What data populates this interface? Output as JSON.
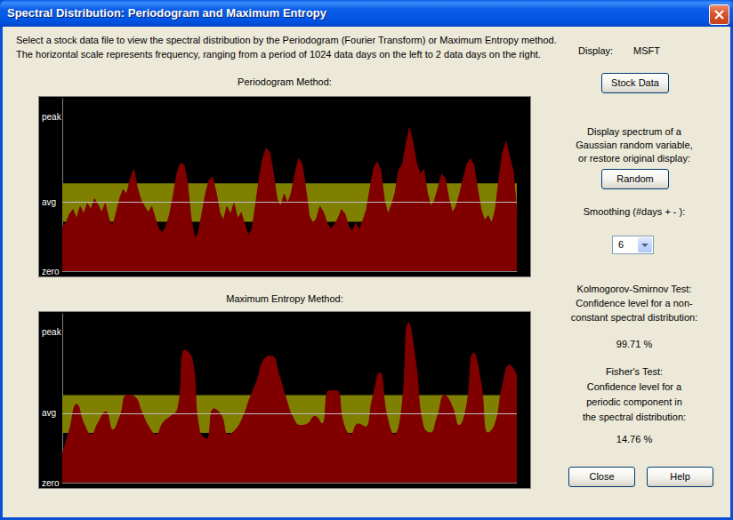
{
  "window": {
    "title": "Spectral Distribution: Periodogram and Maximum Entropy"
  },
  "instructions": [
    "Select a stock data file to view the spectral distribution by the Periodogram (Fourier Transform) or Maximum Entropy method.",
    "The horizontal scale represents frequency, ranging from a period of 1024 data days on the left to 2 data days on the right."
  ],
  "panel": {
    "display_label": "Display:",
    "display_value": "MSFT",
    "stock_button": "Stock Data",
    "random_text": [
      "Display spectrum of a",
      "Gaussian random variable,",
      "or restore original display:"
    ],
    "random_button": "Random",
    "smoothing_label": "Smoothing (#days + - ):",
    "smoothing_value": "6",
    "ks_text": [
      "Kolmogorov-Smirnov Test:",
      "Confidence level for a non-",
      "constant spectral distribution:"
    ],
    "ks_value": "99.71 %",
    "fisher_text": [
      "Fisher's Test:",
      "Confidence level for a",
      "periodic component in",
      "the spectral distribution:"
    ],
    "fisher_value": "14.76 %",
    "close_button": "Close",
    "help_button": "Help"
  },
  "chart_data": [
    {
      "type": "area",
      "title": "Periodogram Method:",
      "color": "#800000",
      "marker": "none",
      "line_style": "solid",
      "grid": false,
      "tick_labels": "y",
      "x": [
        1,
        2,
        3,
        4,
        5,
        6,
        7,
        8,
        9,
        10,
        11,
        12,
        13,
        14,
        15,
        16,
        17,
        18,
        19,
        20,
        21,
        22,
        23,
        24,
        25,
        26,
        27,
        28,
        29,
        30,
        31,
        32,
        33,
        34,
        35,
        36,
        37,
        38,
        39,
        40,
        41,
        42,
        43,
        44,
        45,
        46,
        47,
        48,
        49,
        50,
        51,
        52,
        53,
        54,
        55,
        56,
        57,
        58,
        59,
        60,
        61,
        62,
        63,
        64,
        65,
        66,
        67,
        68,
        69,
        70,
        71,
        72,
        73,
        74,
        75,
        76,
        77,
        78,
        79,
        80,
        81,
        82,
        83,
        84,
        85,
        86,
        87,
        88,
        89,
        90,
        91,
        92,
        93,
        94,
        95,
        96,
        97,
        98,
        99,
        100,
        101,
        102,
        103,
        104,
        105,
        106,
        107,
        108,
        109,
        110,
        111,
        112,
        113,
        114,
        115,
        116,
        117,
        118,
        119,
        120,
        121,
        122,
        123,
        124,
        125,
        126,
        127,
        128
      ],
      "values": [
        29,
        31,
        37,
        40,
        34,
        42,
        37,
        44,
        40,
        47,
        43,
        38,
        44,
        34,
        29,
        37,
        47,
        53,
        50,
        60,
        66,
        54,
        46,
        42,
        38,
        42,
        34,
        27,
        25,
        29,
        37,
        49,
        63,
        70,
        69,
        57,
        34,
        21,
        25,
        37,
        50,
        59,
        61,
        51,
        38,
        33,
        42,
        37,
        44,
        34,
        38,
        30,
        23,
        27,
        43,
        60,
        73,
        80,
        77,
        63,
        47,
        42,
        50,
        44,
        51,
        63,
        73,
        70,
        54,
        36,
        31,
        34,
        42,
        38,
        31,
        27,
        30,
        34,
        40,
        37,
        29,
        26,
        31,
        27,
        33,
        40,
        54,
        67,
        71,
        65,
        46,
        37,
        43,
        51,
        66,
        69,
        82,
        93,
        83,
        70,
        63,
        66,
        51,
        42,
        46,
        54,
        63,
        60,
        47,
        38,
        42,
        50,
        60,
        69,
        73,
        69,
        54,
        40,
        33,
        36,
        31,
        40,
        60,
        77,
        84,
        74,
        65,
        37
      ],
      "xlim": [
        1,
        128
      ],
      "ylim": [
        0,
        112
      ],
      "yticks": [
        {
          "value": 0,
          "label": "zero"
        },
        {
          "value": 45,
          "label": "avg"
        },
        {
          "value": 100,
          "label": "peak"
        }
      ],
      "band": [
        32,
        57
      ],
      "reference_line": 45
    },
    {
      "type": "area",
      "title": "Maximum Entropy Method:",
      "color": "#800000",
      "marker": "none",
      "line_style": "smooth",
      "grid": false,
      "tick_labels": "y",
      "x": [
        1,
        2,
        3,
        4,
        5,
        6,
        7,
        8,
        9,
        10,
        11,
        12,
        13,
        14,
        15,
        16,
        17,
        18,
        19,
        20,
        21,
        22,
        23,
        24,
        25,
        26,
        27,
        28,
        29,
        30,
        31,
        32,
        33,
        34,
        35,
        36,
        37,
        38,
        39,
        40,
        41,
        42,
        43,
        44,
        45,
        46,
        47,
        48,
        49,
        50,
        51,
        52,
        53,
        54,
        55,
        56,
        57,
        58,
        59,
        60,
        61,
        62,
        63,
        64
      ],
      "values": [
        19,
        35,
        52,
        39,
        32,
        40,
        47,
        35,
        44,
        58,
        57,
        47,
        37,
        32,
        40,
        44,
        49,
        88,
        82,
        35,
        29,
        49,
        45,
        32,
        35,
        43,
        56,
        68,
        82,
        84,
        72,
        56,
        43,
        38,
        39,
        44,
        39,
        61,
        61,
        39,
        32,
        39,
        37,
        56,
        73,
        44,
        32,
        47,
        106,
        79,
        38,
        33,
        44,
        58,
        51,
        38,
        50,
        86,
        67,
        33,
        39,
        64,
        78,
        71
      ],
      "xlim": [
        1,
        64
      ],
      "ylim": [
        0,
        112
      ],
      "yticks": [
        {
          "value": 0,
          "label": "zero"
        },
        {
          "value": 46,
          "label": "avg"
        },
        {
          "value": 100,
          "label": "peak"
        }
      ],
      "band": [
        33,
        58
      ],
      "reference_line": 46
    }
  ]
}
